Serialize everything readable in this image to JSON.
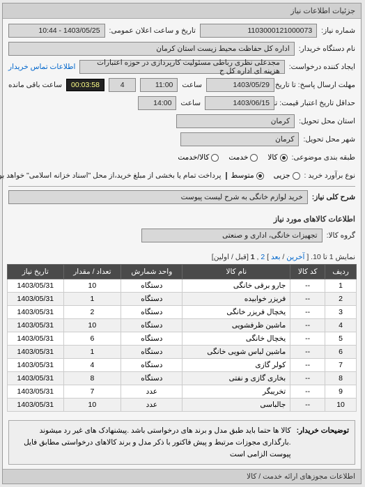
{
  "panel_title": "جزئیات اطلاعات نیاز",
  "form": {
    "req_no_label": "شماره نیاز:",
    "req_no": "1103000121000073",
    "ann_date_label": "تاریخ و ساعت اعلان عمومی:",
    "ann_date": "1403/05/25 - 10:44",
    "buyer_label": "نام دستگاه خریدار:",
    "buyer": "اداره کل حفاظت محیط زیست استان کرمان",
    "creator_label": "ایجاد کننده درخواست:",
    "creator": "مجدعلی نظری رباطی مسئولیت کارپردازی در حوزه اعتبارات هزینه ای اداره کل ح",
    "contact_link": "اطلاعات تماس خریدار",
    "deadline_send_label": "مهلت ارسال پاسخ: تا تاریخ:",
    "deadline_send_date": "1403/05/29",
    "at_label": "ساعت",
    "deadline_send_time": "11:00",
    "days_label": "4",
    "remaining_label": "ساعت باقی مانده",
    "timer": "00:03:58",
    "delivery_label": "حداقل تاریخ اعتبار قیمت: تا تاریخ:",
    "delivery_date": "1403/06/15",
    "delivery_time": "14:00",
    "prov_label": "استان محل تحویل:",
    "prov": "کرمان",
    "city_label": "شهر محل تحویل:",
    "city": "کرمان",
    "pkg_label": "طبقه بندی موضوعی:",
    "pkg_opts": {
      "a": "کالا",
      "b": "خدمت",
      "c": "کالا/خدمت"
    },
    "buy_type_label": "نوع برآورد خرید :",
    "buy_opts": {
      "a": "جزیی",
      "b": "متوسط"
    },
    "pay_note": "پرداخت تمام یا بخشی از مبلغ خرید،از محل \"اسناد خزانه اسلامی\" خواهد بود.",
    "desc_label": "شرح کلی نیاز:",
    "desc": "خرید لوازم خانگی به شرح لیست پیوست"
  },
  "items_title": "اطلاعات کالاهای مورد نیاز",
  "group_label": "گروه کالا:",
  "group_value": "تجهیزات خانگی، اداری و صنعتی",
  "pager": {
    "summary_a": "نمایش 1 تا 10. [",
    "last": "آخرین",
    "sep1": " / ",
    "next": "بعد",
    "sep2": "] ",
    "p1": "1",
    "comma": " ,",
    "p2": "2",
    "summary_b": " [قبل / اولین]"
  },
  "table": {
    "columns": [
      "ردیف",
      "کد کالا",
      "نام کالا",
      "واحد شمارش",
      "تعداد / مقدار",
      "تاریخ نیاز"
    ],
    "rows": [
      [
        "1",
        "--",
        "جارو برقی خانگی",
        "دستگاه",
        "10",
        "1403/05/31"
      ],
      [
        "2",
        "--",
        "فریزر خوابیده",
        "دستگاه",
        "1",
        "1403/05/31"
      ],
      [
        "3",
        "--",
        "یخچال فریزر خانگی",
        "دستگاه",
        "2",
        "1403/05/31"
      ],
      [
        "4",
        "--",
        "ماشین ظرفشویی",
        "دستگاه",
        "10",
        "1403/05/31"
      ],
      [
        "5",
        "--",
        "یخچال خانگی",
        "دستگاه",
        "6",
        "1403/05/31"
      ],
      [
        "6",
        "--",
        "ماشین لباس شویی خانگی",
        "دستگاه",
        "1",
        "1403/05/31"
      ],
      [
        "7",
        "--",
        "کولر گازی",
        "دستگاه",
        "4",
        "1403/05/31"
      ],
      [
        "8",
        "--",
        "بخاری گازی و نفتی",
        "دستگاه",
        "8",
        "1403/05/31"
      ],
      [
        "9",
        "--",
        "تخریبگر",
        "عدد",
        "7",
        "1403/05/31"
      ],
      [
        "10",
        "--",
        "جالباسی",
        "عدد",
        "10",
        "1403/05/31"
      ]
    ]
  },
  "note": {
    "label": "توضیحات خریدار:",
    "text": "کالا ها حتما باید طبق مدل و برند های درخواستی باشد .پیشنهادک های غیر رد میشوند .بارگذاری مجوزات مرتبط و پیش فاکتور با ذکر مدل و برند کالاهای درخواستی مطابق فایل پیوست الزامی است"
  },
  "footer": "اطلاعات مجوزهای ارائه خدمت / کالا",
  "colors": {
    "header_bg": "#d0d0d0",
    "th_bg": "#4a4a4a",
    "link": "#0066cc"
  }
}
